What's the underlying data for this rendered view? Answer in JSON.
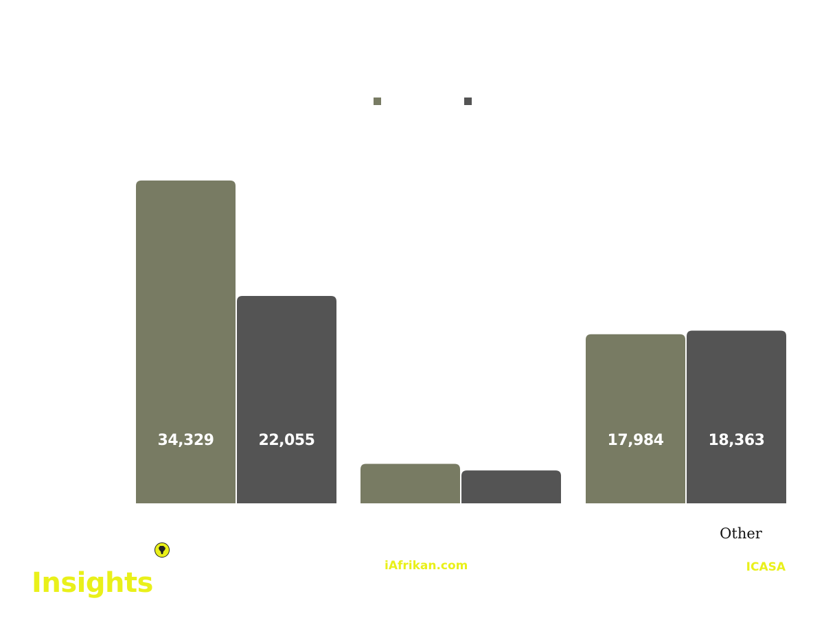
{
  "chart_data": {
    "type": "bar",
    "categories": [
      "",
      "",
      "Other"
    ],
    "series": [
      {
        "color": "#787b63",
        "values": [
          34329,
          4200,
          17984
        ],
        "labels": [
          "34,329",
          "",
          "17,984"
        ]
      },
      {
        "color": "#545454",
        "values": [
          22055,
          3500,
          18363
        ],
        "labels": [
          "22,055",
          "",
          "18,363"
        ]
      }
    ],
    "ylim": [
      0,
      36000
    ],
    "grid": false,
    "legend_position": "top-center"
  },
  "footer": {
    "brand": "Insights",
    "website": "iAfrikan.com",
    "source": "ICASA"
  },
  "logo_icon": "africa-logo-icon"
}
